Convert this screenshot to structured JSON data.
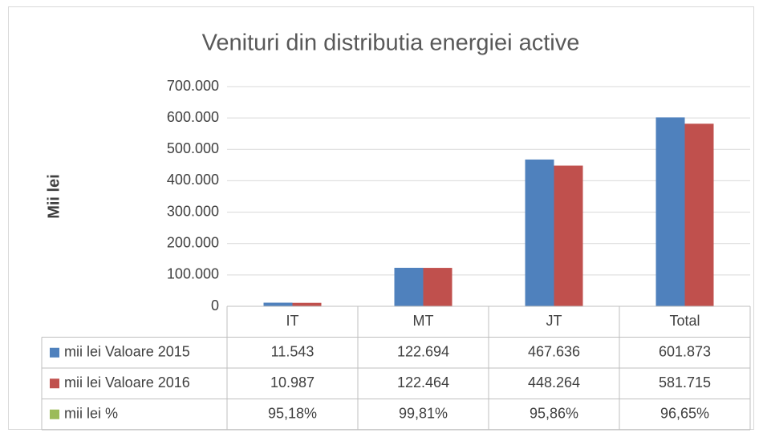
{
  "chart_data": {
    "type": "bar",
    "title": "Venituri din distributia energiei active",
    "y_label": "Mii lei",
    "categories": [
      "IT",
      "MT",
      "JT",
      "Total"
    ],
    "series": [
      {
        "name": "mii lei Valoare 2015",
        "color": "#4f81bd",
        "values": [
          11543,
          122694,
          467636,
          601873
        ],
        "value_labels": [
          "11.543",
          "122.694",
          "467.636",
          "601.873"
        ]
      },
      {
        "name": "mii lei Valoare 2016",
        "color": "#c0504d",
        "values": [
          10987,
          122464,
          448264,
          581715
        ],
        "value_labels": [
          "10.987",
          "122.464",
          "448.264",
          "581.715"
        ]
      },
      {
        "name": "mii lei %",
        "color": "#9bbb59",
        "values": [
          95.18,
          99.81,
          95.86,
          96.65
        ],
        "value_labels": [
          "95,18%",
          "99,81%",
          "95,86%",
          "96,65%"
        ]
      }
    ],
    "ylim": [
      0,
      700000
    ],
    "yticks": [
      0,
      {
        "value": 100000,
        "label": "100.000"
      },
      {
        "value": 200000,
        "label": "200.000"
      },
      {
        "value": 300000,
        "label": "300.000"
      },
      {
        "value": 400000,
        "label": "400.000"
      },
      {
        "value": 500000,
        "label": "500.000"
      },
      {
        "value": 600000,
        "label": "600.000"
      },
      {
        "value": 700000,
        "label": "700.000"
      }
    ],
    "grid": true
  }
}
